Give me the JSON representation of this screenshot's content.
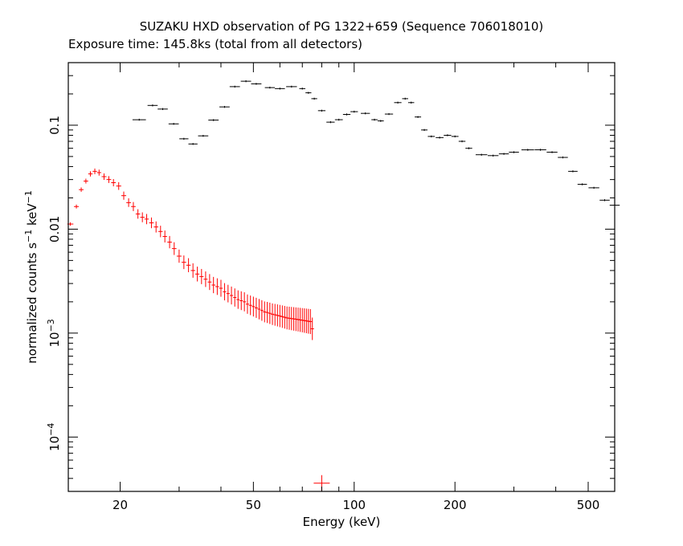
{
  "chart_data": {
    "type": "scatter",
    "title": "SUZAKU HXD observation of PG 1322+659 (Sequence 706018010)",
    "subtitle": "Exposure time: 145.8ks (total from all detectors)",
    "xlabel": "Energy (keV)",
    "ylabel": {
      "base": "normalized counts s",
      "sup1": "−1",
      "mid": " keV",
      "sup2": "−1"
    },
    "x_scale": "log",
    "y_scale": "log",
    "xlim": [
      14,
      600
    ],
    "ylim": [
      3e-05,
      0.4
    ],
    "x_ticks": [
      {
        "value": 20,
        "label": "20"
      },
      {
        "value": 50,
        "label": "50"
      },
      {
        "value": 100,
        "label": "100"
      },
      {
        "value": 200,
        "label": "200"
      },
      {
        "value": 500,
        "label": "500"
      }
    ],
    "y_ticks": [
      {
        "value": 0.1,
        "label": "0.1"
      },
      {
        "value": 0.01,
        "label": "0.01"
      },
      {
        "value": 0.001,
        "label": "10",
        "sup": "−3"
      },
      {
        "value": 0.0001,
        "label": "10",
        "sup": "−4"
      }
    ],
    "grid": false,
    "series": [
      {
        "color": "#000000",
        "points": [
          [
            22.8,
            0.113
          ],
          [
            25.0,
            0.155
          ],
          [
            26.8,
            0.143
          ],
          [
            28.9,
            0.103
          ],
          [
            31.0,
            0.074
          ],
          [
            33.0,
            0.066
          ],
          [
            35.4,
            0.079
          ],
          [
            38.0,
            0.112
          ],
          [
            41.0,
            0.15
          ],
          [
            44.0,
            0.235
          ],
          [
            47.5,
            0.265
          ],
          [
            51.0,
            0.25
          ],
          [
            56.0,
            0.23
          ],
          [
            60.0,
            0.225
          ],
          [
            65.0,
            0.235
          ],
          [
            70.0,
            0.225
          ],
          [
            73.0,
            0.205
          ],
          [
            76.0,
            0.18
          ],
          [
            80.0,
            0.138
          ],
          [
            85.0,
            0.107
          ],
          [
            90.0,
            0.113
          ],
          [
            95.0,
            0.127
          ],
          [
            100.0,
            0.135
          ],
          [
            108.0,
            0.13
          ],
          [
            115.0,
            0.113
          ],
          [
            120.0,
            0.11
          ],
          [
            127.0,
            0.128
          ],
          [
            135.0,
            0.165
          ],
          [
            142.0,
            0.18
          ],
          [
            148.0,
            0.165
          ],
          [
            155.0,
            0.12
          ],
          [
            162.0,
            0.09
          ],
          [
            170.0,
            0.078
          ],
          [
            180.0,
            0.076
          ],
          [
            190.0,
            0.08
          ],
          [
            200.0,
            0.078
          ],
          [
            210.0,
            0.07
          ],
          [
            220.0,
            0.06
          ],
          [
            240.0,
            0.052
          ],
          [
            260.0,
            0.051
          ],
          [
            280.0,
            0.053
          ],
          [
            300.0,
            0.055
          ],
          [
            330.0,
            0.058
          ],
          [
            360.0,
            0.058
          ],
          [
            390.0,
            0.055
          ],
          [
            420.0,
            0.049
          ],
          [
            450.0,
            0.036
          ],
          [
            480.0,
            0.027
          ],
          [
            520.0,
            0.025
          ],
          [
            560.0,
            0.019
          ],
          [
            600.0,
            0.017
          ]
        ]
      },
      {
        "color": "#ff0000",
        "points": [
          [
            14.2,
            0.0112
          ],
          [
            14.8,
            0.0165
          ],
          [
            15.3,
            0.024
          ],
          [
            15.8,
            0.029
          ],
          [
            16.3,
            0.034
          ],
          [
            16.8,
            0.036
          ],
          [
            17.3,
            0.035
          ],
          [
            17.9,
            0.032
          ],
          [
            18.5,
            0.03
          ],
          [
            19.1,
            0.028
          ],
          [
            19.8,
            0.026
          ],
          [
            20.5,
            0.021
          ],
          [
            21.2,
            0.018
          ],
          [
            21.9,
            0.0165
          ],
          [
            22.6,
            0.014
          ],
          [
            23.3,
            0.013
          ],
          [
            24.0,
            0.0125
          ],
          [
            24.8,
            0.0115
          ],
          [
            25.6,
            0.0105
          ],
          [
            26.4,
            0.0095
          ],
          [
            27.2,
            0.0085
          ],
          [
            28.1,
            0.0075
          ],
          [
            29.0,
            0.0065
          ],
          [
            30.0,
            0.0055
          ],
          [
            31.0,
            0.0048
          ],
          [
            32.0,
            0.0045
          ],
          [
            33.0,
            0.004
          ],
          [
            34.0,
            0.0037
          ],
          [
            35.0,
            0.0035
          ],
          [
            36.0,
            0.0033
          ],
          [
            37.0,
            0.0031
          ],
          [
            38.0,
            0.0029
          ],
          [
            39.0,
            0.0028
          ],
          [
            40.0,
            0.0027
          ],
          [
            41.0,
            0.0025
          ],
          [
            42.0,
            0.0024
          ],
          [
            43.0,
            0.0023
          ],
          [
            44.0,
            0.0022
          ],
          [
            45.0,
            0.0021
          ],
          [
            46.0,
            0.00205
          ],
          [
            47.0,
            0.002
          ],
          [
            48.0,
            0.0019
          ],
          [
            49.0,
            0.00185
          ],
          [
            50.0,
            0.0018
          ],
          [
            51.0,
            0.00175
          ],
          [
            52.0,
            0.0017
          ],
          [
            53.0,
            0.00165
          ],
          [
            54.0,
            0.0016
          ],
          [
            55.0,
            0.00158
          ],
          [
            56.0,
            0.00155
          ],
          [
            57.0,
            0.00152
          ],
          [
            58.0,
            0.0015
          ],
          [
            59.0,
            0.00148
          ],
          [
            60.0,
            0.00146
          ],
          [
            61.0,
            0.00144
          ],
          [
            62.0,
            0.00142
          ],
          [
            63.0,
            0.0014
          ],
          [
            64.0,
            0.00139
          ],
          [
            65.0,
            0.00138
          ],
          [
            66.0,
            0.00137
          ],
          [
            67.0,
            0.00136
          ],
          [
            68.0,
            0.00135
          ],
          [
            69.0,
            0.00134
          ],
          [
            70.0,
            0.00133
          ],
          [
            71.0,
            0.00132
          ],
          [
            72.0,
            0.00131
          ],
          [
            73.0,
            0.0013
          ],
          [
            74.0,
            0.00129
          ],
          [
            75.0,
            0.0011
          ],
          [
            80.0,
            3.6e-05
          ]
        ]
      }
    ]
  }
}
